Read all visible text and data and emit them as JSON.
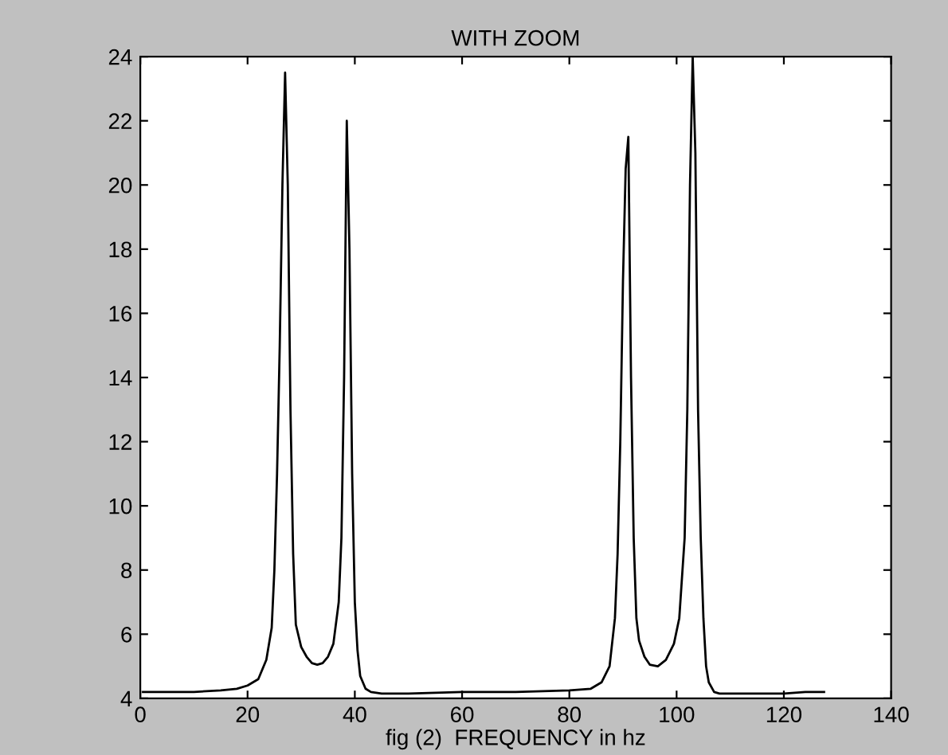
{
  "chart_data": {
    "type": "line",
    "title": "WITH ZOOM",
    "xlabel": "fig (2)  FREQUENCY in hz",
    "xlim": [
      0,
      140
    ],
    "ylim": [
      4,
      24
    ],
    "xticks": [
      0,
      20,
      40,
      60,
      80,
      100,
      120,
      140
    ],
    "yticks": [
      4,
      6,
      8,
      10,
      12,
      14,
      16,
      18,
      20,
      22,
      24
    ],
    "grid": false,
    "series": [
      {
        "color": "#000000",
        "x": [
          0.5,
          10,
          15,
          18,
          20,
          22,
          23.5,
          24.5,
          25,
          25.5,
          26,
          26.5,
          27,
          27.5,
          28,
          28.5,
          29,
          30,
          31,
          32,
          33,
          34,
          35,
          36,
          37,
          37.5,
          38,
          38.5,
          39,
          39.5,
          40,
          40.5,
          41,
          42,
          43,
          45,
          50,
          60,
          70,
          80,
          84,
          86,
          87.5,
          88.5,
          89,
          89.5,
          90,
          90.5,
          91,
          91.5,
          92,
          92.5,
          93,
          94,
          95,
          96.5,
          98,
          99.5,
          100.5,
          101.5,
          102,
          102.5,
          103,
          103.5,
          104,
          104.5,
          105,
          105.5,
          106,
          107,
          108,
          110,
          120,
          124,
          127.5
        ],
        "values": [
          4.2,
          4.2,
          4.25,
          4.3,
          4.4,
          4.6,
          5.2,
          6.2,
          8,
          11,
          15,
          20,
          23.5,
          20,
          13,
          8.5,
          6.3,
          5.6,
          5.3,
          5.1,
          5.05,
          5.1,
          5.3,
          5.7,
          7,
          9,
          14,
          22,
          18,
          11,
          7,
          5.5,
          4.7,
          4.3,
          4.2,
          4.15,
          4.15,
          4.2,
          4.2,
          4.25,
          4.3,
          4.5,
          5,
          6.5,
          8.5,
          12,
          17,
          20.5,
          21.5,
          14,
          9,
          6.5,
          5.8,
          5.3,
          5.05,
          5.0,
          5.2,
          5.7,
          6.5,
          9,
          13,
          20,
          24,
          21,
          13,
          9,
          6.5,
          5,
          4.5,
          4.2,
          4.15,
          4.15,
          4.15,
          4.2,
          4.2
        ]
      }
    ]
  }
}
